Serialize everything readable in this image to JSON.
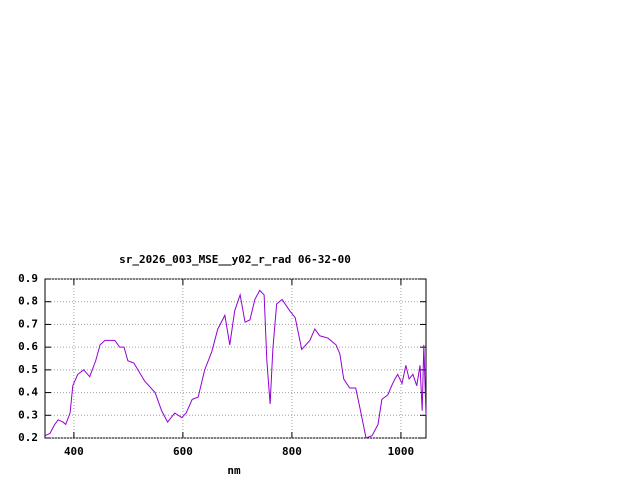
{
  "chart_data": {
    "type": "line",
    "title": "sr_2026_003_MSE__y02_r_rad 06-32-00",
    "x_label": "nm",
    "x": [
      347,
      356,
      365,
      371,
      380,
      385,
      393,
      398,
      407,
      418,
      429,
      440,
      448,
      457,
      475,
      484,
      492,
      499,
      510,
      530,
      549,
      561,
      572,
      585,
      598,
      606,
      617,
      628,
      640,
      653,
      664,
      677,
      686,
      695,
      705,
      714,
      723,
      732,
      741,
      749,
      754,
      760,
      765,
      772,
      782,
      796,
      806,
      818,
      833,
      842,
      851,
      866,
      881,
      888,
      895,
      906,
      917,
      925,
      936,
      947,
      958,
      965,
      976,
      983,
      989,
      994,
      1002,
      1009,
      1015,
      1022,
      1029,
      1035,
      1039,
      1042,
      1046
    ],
    "series": [
      {
        "color": "#9400d3",
        "values": [
          0.21,
          0.22,
          0.26,
          0.28,
          0.27,
          0.26,
          0.31,
          0.43,
          0.48,
          0.5,
          0.47,
          0.54,
          0.61,
          0.63,
          0.63,
          0.6,
          0.6,
          0.54,
          0.53,
          0.45,
          0.4,
          0.32,
          0.27,
          0.31,
          0.29,
          0.31,
          0.37,
          0.38,
          0.5,
          0.58,
          0.68,
          0.74,
          0.61,
          0.76,
          0.83,
          0.71,
          0.72,
          0.81,
          0.85,
          0.83,
          0.54,
          0.35,
          0.59,
          0.79,
          0.81,
          0.76,
          0.73,
          0.59,
          0.63,
          0.68,
          0.65,
          0.64,
          0.61,
          0.57,
          0.46,
          0.42,
          0.42,
          0.33,
          0.2,
          0.21,
          0.26,
          0.37,
          0.39,
          0.43,
          0.46,
          0.48,
          0.44,
          0.52,
          0.46,
          0.48,
          0.43,
          0.52,
          0.32,
          0.61,
          0.3
        ]
      }
    ],
    "xlim": [
      347,
      1046
    ],
    "xticks": [
      400,
      600,
      800,
      1000
    ],
    "ylim": [
      0.2,
      0.9
    ],
    "yticks": [
      0.2,
      0.3,
      0.4,
      0.5,
      0.6,
      0.7,
      0.8,
      0.9
    ],
    "grid": true
  }
}
